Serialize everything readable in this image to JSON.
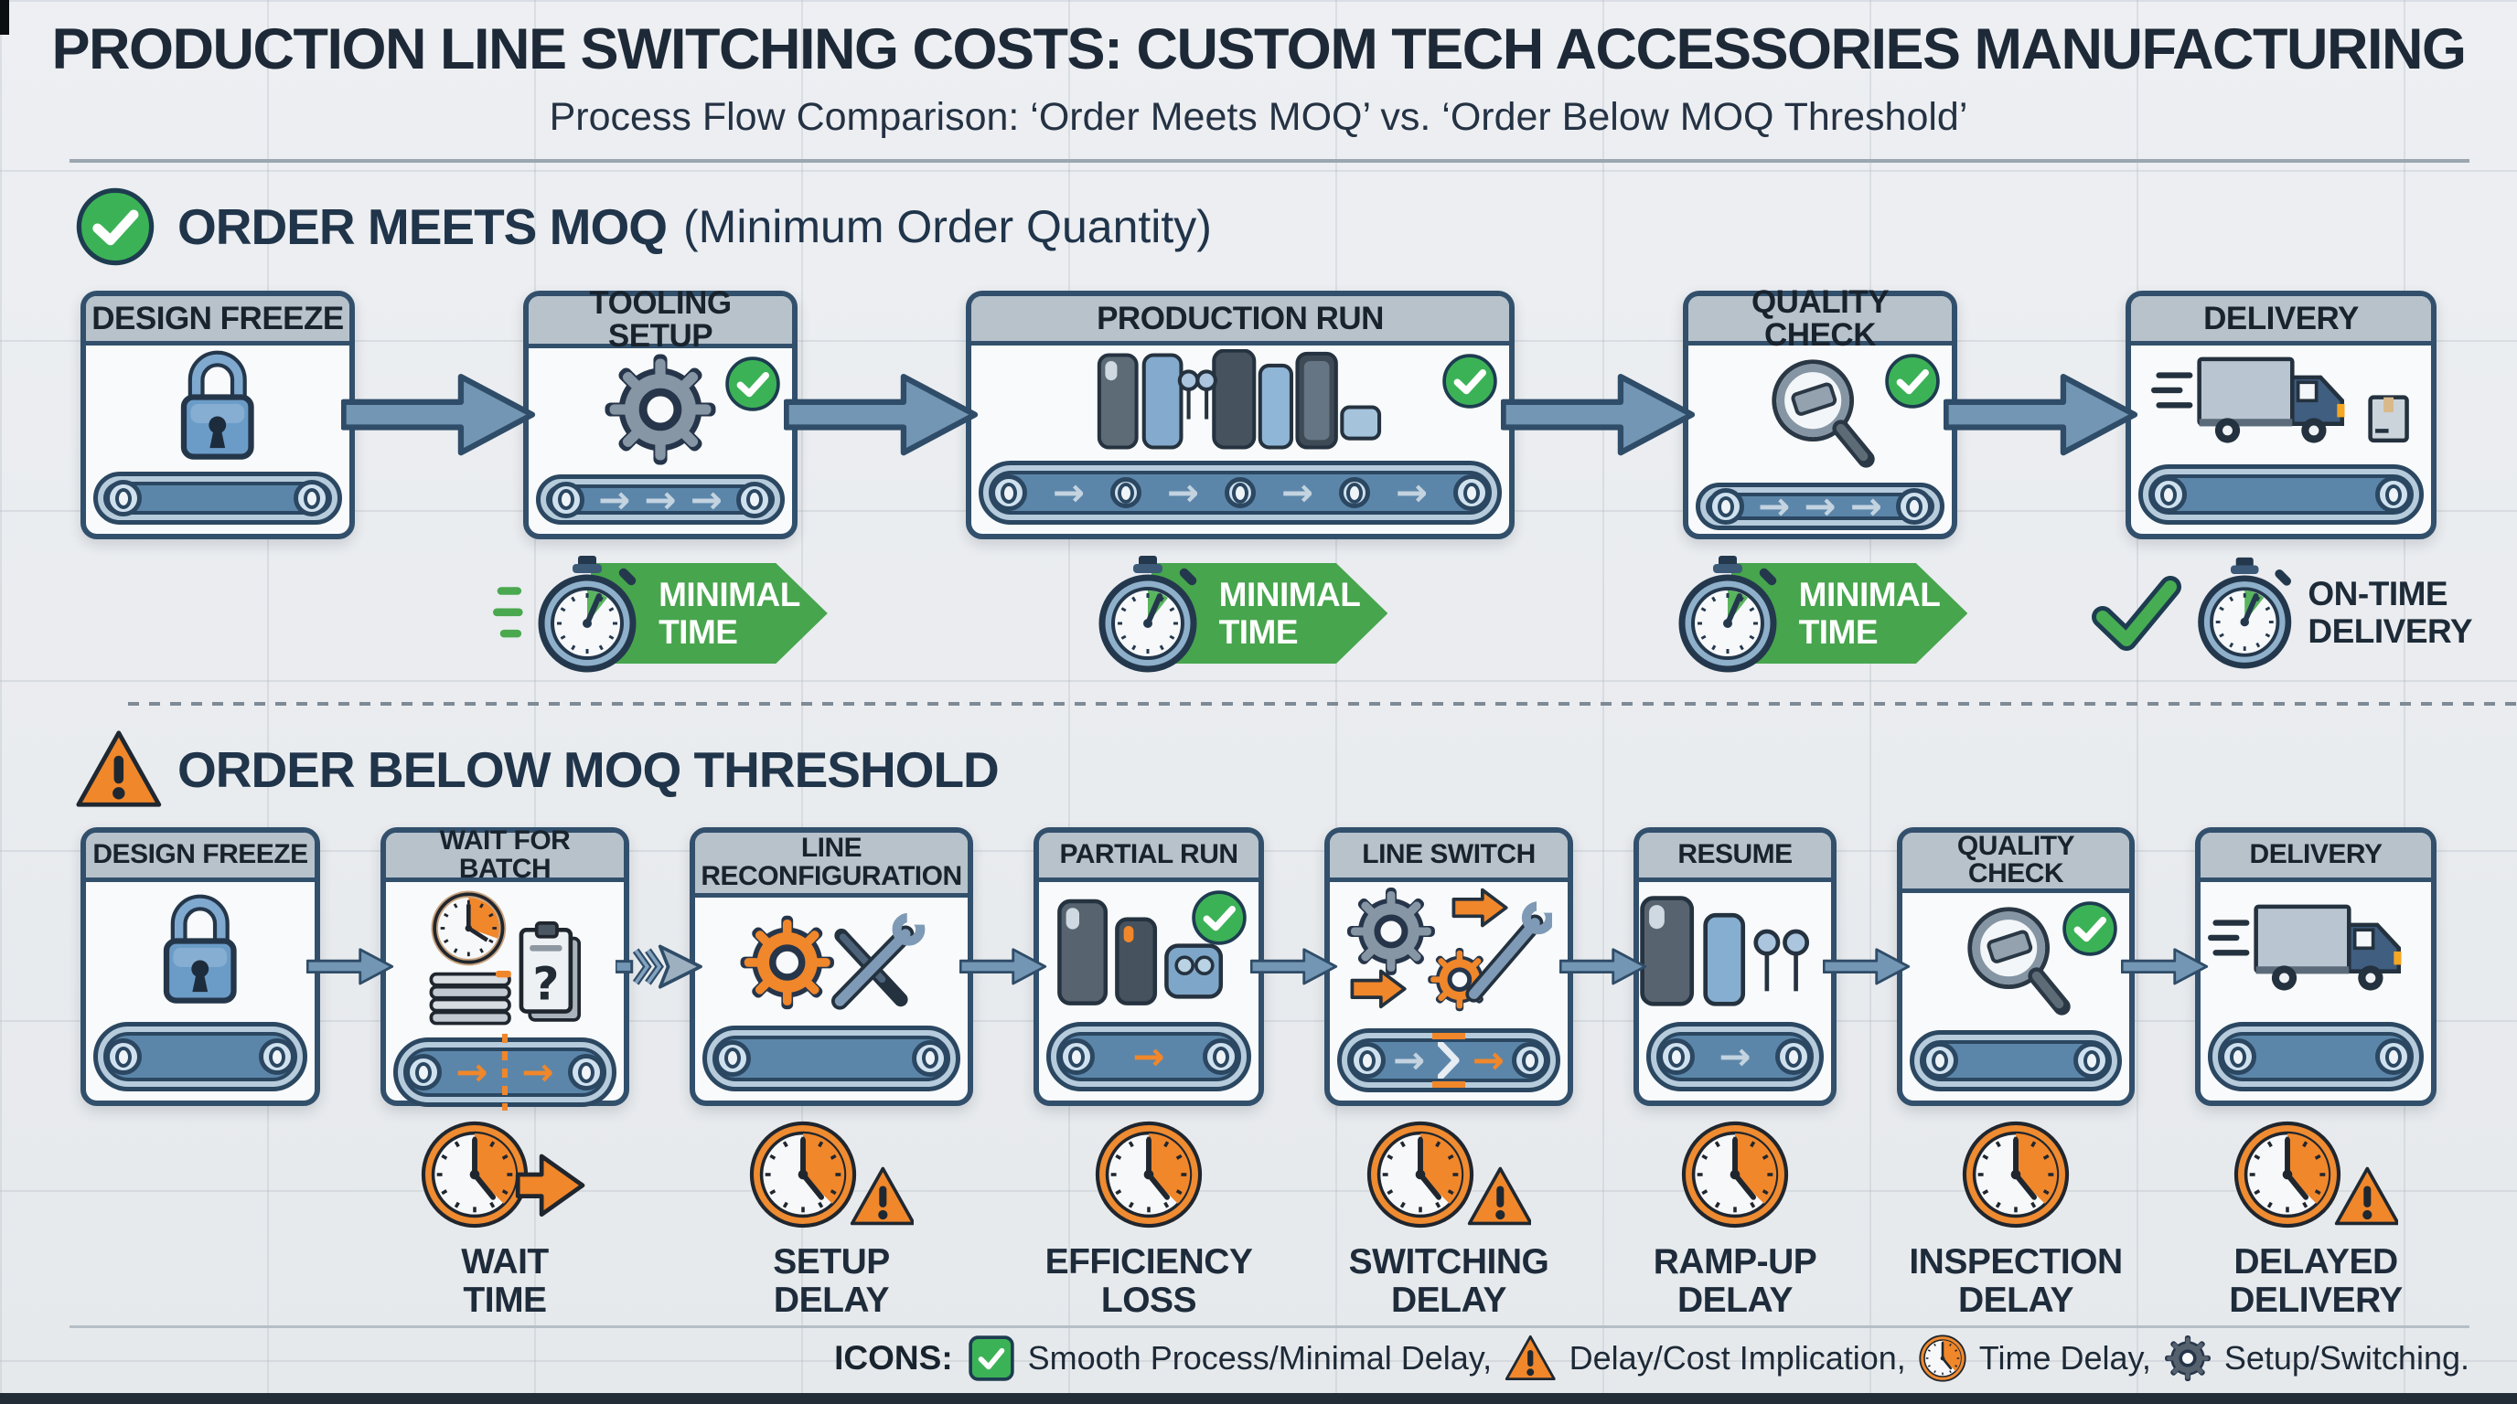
{
  "header": {
    "title": "PRODUCTION LINE SWITCHING COSTS: CUSTOM TECH ACCESSORIES MANUFACTURING",
    "subtitle": "Process Flow Comparison: ‘Order Meets MOQ’ vs. ‘Order Below MOQ Threshold’"
  },
  "colors": {
    "background": "#e9ebee",
    "navy_text": "#1d2b3a",
    "steel_blue_arrow": "#7296b4",
    "green_check": "#3cb257",
    "green_badge": "#47a54d",
    "orange_warning": "#f0872b",
    "box_header": "#b7c2cb",
    "belt_blue": "#5c86a9"
  },
  "sections": [
    {
      "id": "meets-moq",
      "icon": "check-circle-icon",
      "title": "ORDER MEETS MOQ",
      "title_suffix": " (Minimum Order Quantity)",
      "stages": [
        {
          "label": "DESIGN FREEZE",
          "icon": "lock-icon",
          "check": false,
          "belt": {
            "arrows": 0
          }
        },
        {
          "label": "TOOLING SETUP",
          "icon": "gear-icon",
          "check": true,
          "belt": {
            "arrows": 3,
            "color": "gray"
          }
        },
        {
          "label": "PRODUCTION RUN",
          "icon": "products-icon",
          "check": true,
          "belt": {
            "arrows": 4,
            "color": "gray",
            "mid_rollers": 3
          }
        },
        {
          "label": "QUALITY CHECK",
          "icon": "magnifier-icon",
          "check": true,
          "belt": {
            "arrows": 3,
            "color": "gray"
          }
        },
        {
          "label": "DELIVERY",
          "icon": "truck-package-icon",
          "check": false,
          "belt": {
            "arrows": 0
          }
        }
      ],
      "badges": [
        {
          "stage": 1,
          "type": "minimal",
          "icon": "stopwatch-icon",
          "speed_lines": true,
          "label_lines": [
            "MINIMAL",
            "TIME"
          ]
        },
        {
          "stage": 2,
          "type": "minimal",
          "icon": "stopwatch-icon",
          "speed_lines": false,
          "label_lines": [
            "MINIMAL",
            "TIME"
          ]
        },
        {
          "stage": 3,
          "type": "minimal",
          "icon": "stopwatch-icon",
          "speed_lines": false,
          "label_lines": [
            "MINIMAL",
            "TIME"
          ]
        },
        {
          "stage": 4,
          "type": "on-time",
          "icon": "stopwatch-icon",
          "check_icon": "big-check-icon",
          "label_lines": [
            "ON-TIME",
            "DELIVERY"
          ]
        }
      ]
    },
    {
      "id": "below-moq",
      "icon": "warning-icon",
      "title": "ORDER BELOW MOQ THRESHOLD",
      "title_suffix": "",
      "stages": [
        {
          "label": "DESIGN FREEZE",
          "icon": "lock-icon",
          "check": false,
          "belt": {
            "arrows": 0
          }
        },
        {
          "label": "WAIT FOR BATCH",
          "icon": "wait-icon",
          "check": false,
          "belt": {
            "arrows": 2,
            "color": "orange",
            "dashed_break": true
          },
          "connector_after": "chevron-arrow-icon"
        },
        {
          "label": "LINE RECONFIGURATION",
          "icon": "reconfig-icon",
          "check": false,
          "belt": {
            "arrows": 0
          }
        },
        {
          "label": "PARTIAL RUN",
          "icon": "partial-products-icon",
          "check": true,
          "belt": {
            "arrows": 1,
            "color": "orange"
          }
        },
        {
          "label": "LINE SWITCH",
          "icon": "line-switch-icon",
          "check": false,
          "belt": {
            "style": "switch"
          }
        },
        {
          "label": "RESUME",
          "icon": "resume-products-icon",
          "check": false,
          "belt": {
            "arrows": 1,
            "color": "gray"
          }
        },
        {
          "label": "QUALITY CHECK",
          "icon": "magnifier-icon",
          "check": true,
          "belt": {
            "arrows": 0
          }
        },
        {
          "label": "DELIVERY",
          "icon": "truck-icon",
          "check": false,
          "belt": {
            "arrows": 0
          }
        }
      ],
      "delays": [
        {
          "stage": 1,
          "icon": "clock-arrow-icon",
          "label_lines": [
            "WAIT",
            "TIME"
          ]
        },
        {
          "stage": 2,
          "icon": "clock-warning-icon",
          "label_lines": [
            "SETUP",
            "DELAY"
          ]
        },
        {
          "stage": 3,
          "icon": "clock-icon",
          "label_lines": [
            "EFFICIENCY",
            "LOSS"
          ]
        },
        {
          "stage": 4,
          "icon": "clock-warning-icon",
          "label_lines": [
            "SWITCHING",
            "DELAY"
          ]
        },
        {
          "stage": 5,
          "icon": "clock-icon",
          "label_lines": [
            "RAMP-UP",
            "DELAY"
          ]
        },
        {
          "stage": 6,
          "icon": "clock-icon",
          "label_lines": [
            "INSPECTION",
            "DELAY"
          ]
        },
        {
          "stage": 7,
          "icon": "clock-warning-icon",
          "label_lines": [
            "DELAYED",
            "DELIVERY"
          ]
        }
      ]
    }
  ],
  "legend": {
    "label": "ICONS:",
    "items": [
      {
        "icon": "check-square-icon",
        "text": "Smooth Process/Minimal Delay,"
      },
      {
        "icon": "warning-icon",
        "text": "Delay/Cost Implication,"
      },
      {
        "icon": "clock-icon",
        "text": "Time Delay,"
      },
      {
        "icon": "gear-dark-icon",
        "text": "Setup/Switching."
      }
    ]
  }
}
